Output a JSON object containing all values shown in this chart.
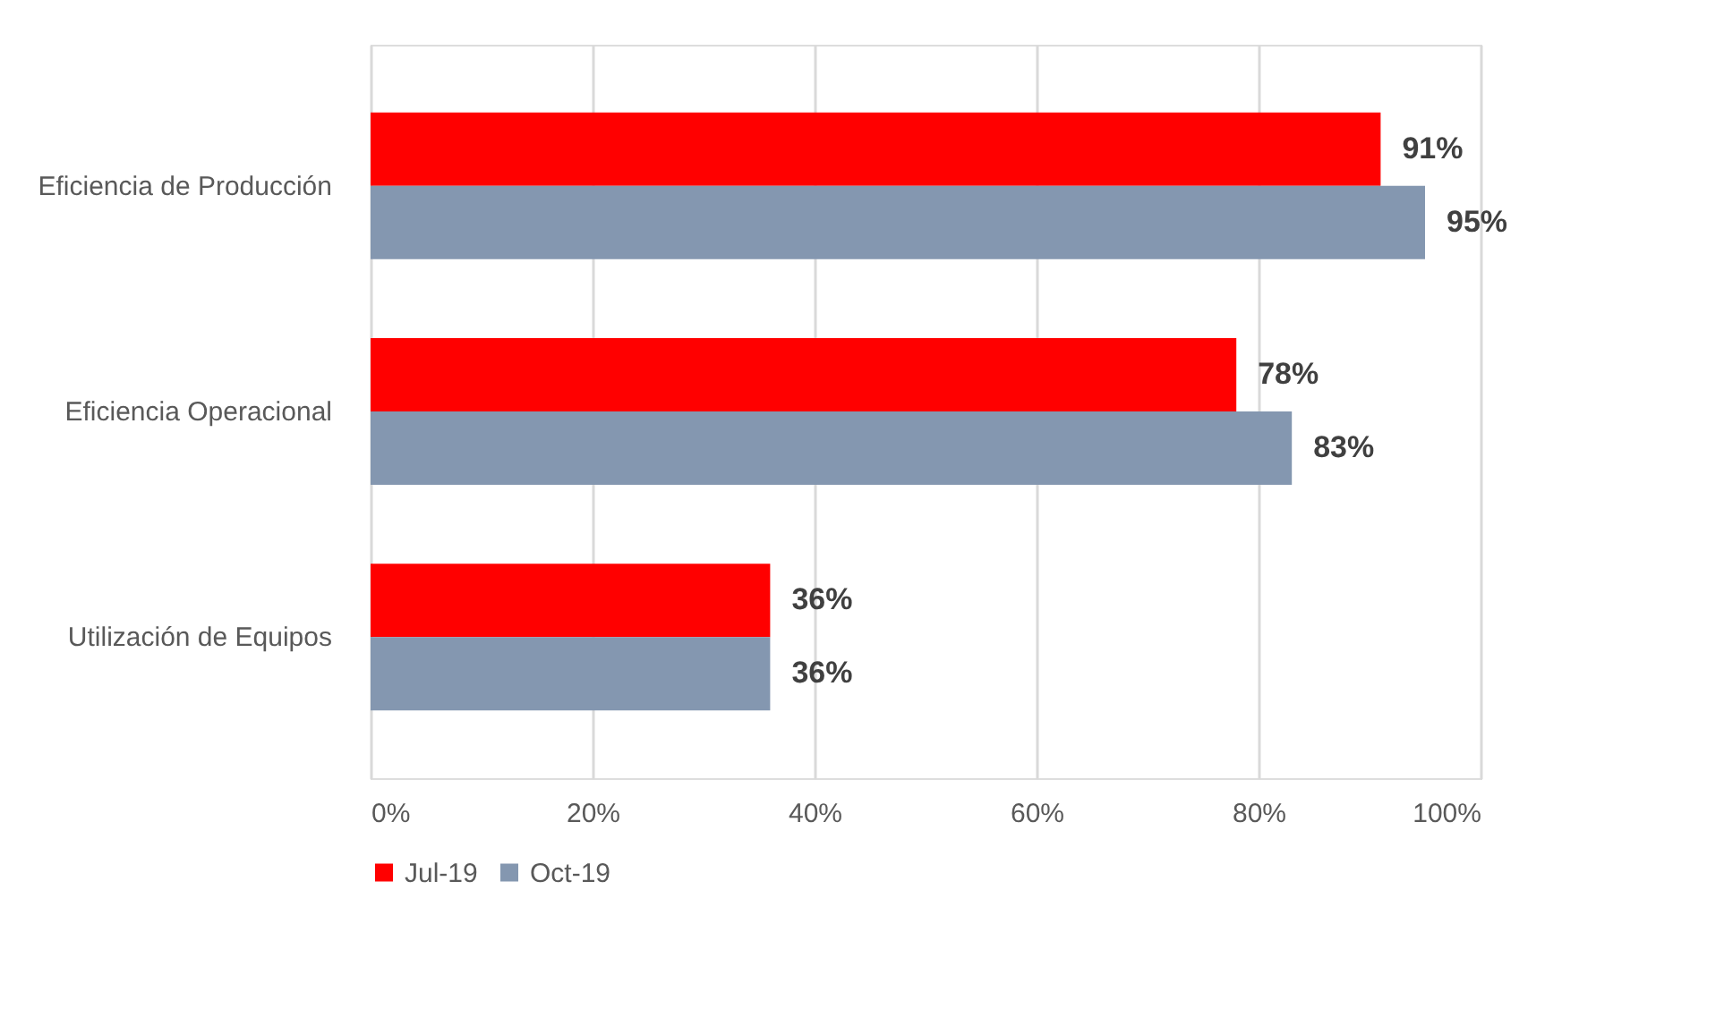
{
  "chart_data": {
    "type": "bar",
    "orientation": "horizontal",
    "categories": [
      "Eficiencia de Producción",
      "Eficiencia Operacional",
      "Utilización de Equipos"
    ],
    "series": [
      {
        "name": "Jul-19",
        "color": "#ff0000",
        "values": [
          91,
          78,
          36
        ],
        "value_labels": [
          "91%",
          "78%",
          "36%"
        ]
      },
      {
        "name": "Oct-19",
        "color": "#8497b0",
        "values": [
          95,
          83,
          36
        ],
        "value_labels": [
          "95%",
          "83%",
          "36%"
        ]
      }
    ],
    "xlim": [
      0,
      100
    ],
    "xticks": [
      {
        "value": 0,
        "label": "0%"
      },
      {
        "value": 20,
        "label": "20%"
      },
      {
        "value": 40,
        "label": "40%"
      },
      {
        "value": 60,
        "label": "60%"
      },
      {
        "value": 80,
        "label": "80%"
      },
      {
        "value": 100,
        "label": "100%"
      }
    ],
    "grid": "x",
    "legend": "bottom"
  }
}
